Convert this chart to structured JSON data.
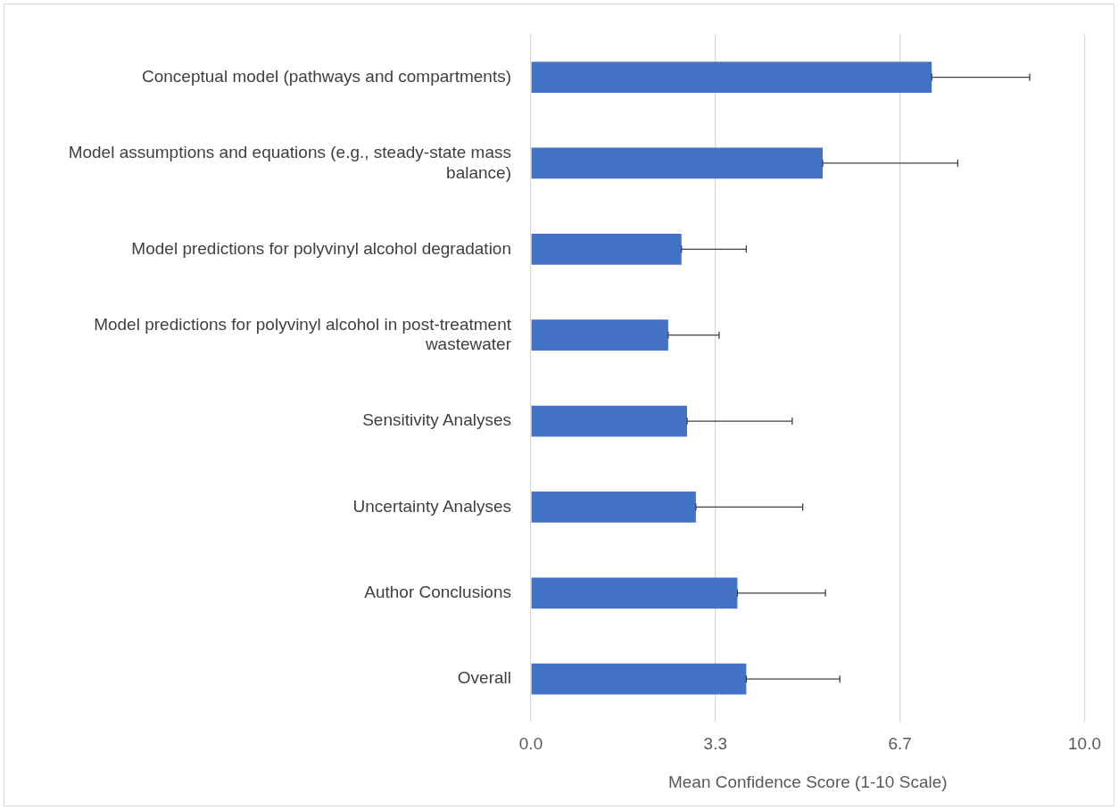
{
  "chart_data": {
    "type": "bar",
    "orientation": "horizontal",
    "xlabel": "Mean Confidence Score (1-10 Scale)",
    "categories": [
      "Conceptual model (pathways and compartments)",
      "Model assumptions and equations (e.g., steady-state mass balance)",
      "Model predictions for polyvinyl alcohol degradation",
      "Model predictions for polyvinyl alcohol in post-treatment wastewater",
      "Sensitivity Analyses",
      "Uncertainty Analyses",
      "Author Conclusions",
      "Overall"
    ],
    "values": [
      7.24,
      5.27,
      2.72,
      2.48,
      2.82,
      2.98,
      3.73,
      3.89
    ],
    "errors": [
      [
        7.24,
        9.01
      ],
      [
        5.27,
        7.71
      ],
      [
        2.72,
        3.89
      ],
      [
        2.48,
        3.4
      ],
      [
        2.82,
        4.72
      ],
      [
        2.98,
        4.91
      ],
      [
        3.73,
        5.32
      ],
      [
        3.89,
        5.58
      ]
    ],
    "color": "#4472c4",
    "xlim": [
      0,
      10
    ],
    "xticks": [
      {
        "value": 0,
        "label": "0.0"
      },
      {
        "value": 3.333,
        "label": "3.3"
      },
      {
        "value": 6.667,
        "label": "6.7"
      },
      {
        "value": 10,
        "label": "10.0"
      }
    ],
    "grid": "x"
  }
}
